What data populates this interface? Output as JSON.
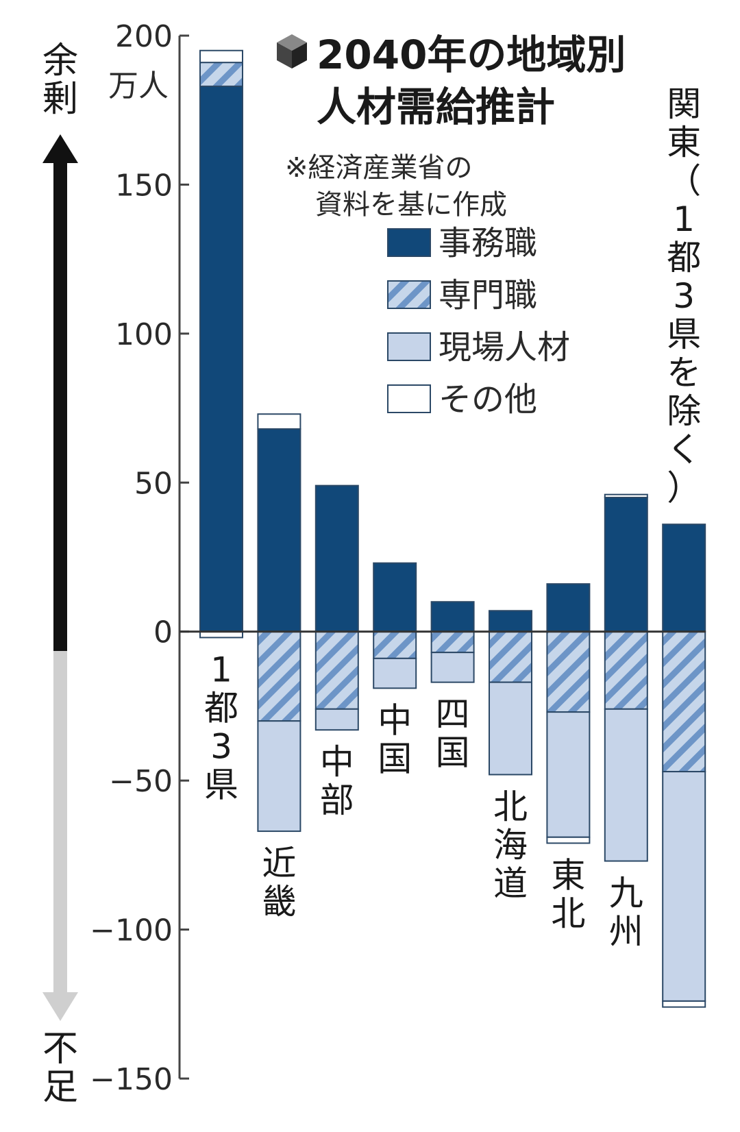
{
  "chart_data": {
    "type": "bar",
    "stacked": true,
    "title_lines": [
      "2040年の地域別",
      "人材需給推計"
    ],
    "note_lines": [
      "※経済産業省の",
      "資料を基に作成"
    ],
    "y_unit": "万人",
    "y_top_label": "余剰",
    "y_bottom_label": "不足",
    "ylim": [
      -150,
      200
    ],
    "yticks": [
      "200",
      "150",
      "100",
      "50",
      "0",
      "−50",
      "−100",
      "−150"
    ],
    "ytick_values": [
      200,
      150,
      100,
      50,
      0,
      -50,
      -100,
      -150
    ],
    "colors": {
      "clerical": "#114879",
      "professional_a": "#6d95c7",
      "professional_b": "#c6d6ea",
      "field": "#c6d4e9",
      "other": "#ffffff",
      "outline": "#2b4866",
      "arrow_up": "#111111",
      "arrow_down": "#cfcfcf"
    },
    "legend": [
      {
        "key": "clerical",
        "name": "事務職",
        "pattern": "solid"
      },
      {
        "key": "professional",
        "name": "専門職",
        "pattern": "hatch"
      },
      {
        "key": "field",
        "name": "現場人材",
        "pattern": "solid"
      },
      {
        "key": "other",
        "name": "その他",
        "pattern": "solid"
      }
    ],
    "categories": [
      {
        "label": "1都3県",
        "label_chars": [
          "1",
          "都",
          "3",
          "県"
        ],
        "label_side": "below",
        "clerical": 183,
        "professional": 8,
        "field": 0,
        "other": 4,
        "other_neg": -2
      },
      {
        "label": "近畿",
        "label_chars": [
          "近",
          "畿"
        ],
        "label_side": "below",
        "clerical": 68,
        "professional": -30,
        "field": -37,
        "other": 5,
        "other_neg": 0
      },
      {
        "label": "中部",
        "label_chars": [
          "中",
          "部"
        ],
        "label_side": "below",
        "clerical": 49,
        "professional": -26,
        "field": -7,
        "other": 0,
        "other_neg": 0
      },
      {
        "label": "中国",
        "label_chars": [
          "中",
          "国"
        ],
        "label_side": "below",
        "clerical": 23,
        "professional": -9,
        "field": -10,
        "other": 0,
        "other_neg": 0
      },
      {
        "label": "四国",
        "label_chars": [
          "四",
          "国"
        ],
        "label_side": "below",
        "clerical": 10,
        "professional": -7,
        "field": -10,
        "other": 0,
        "other_neg": 0
      },
      {
        "label": "北海道",
        "label_chars": [
          "北",
          "海",
          "道"
        ],
        "label_side": "below",
        "clerical": 7,
        "professional": -17,
        "field": -31,
        "other": 0,
        "other_neg": 0
      },
      {
        "label": "東北",
        "label_chars": [
          "東",
          "北"
        ],
        "label_side": "below",
        "clerical": 16,
        "professional": -27,
        "field": -42,
        "other": 0,
        "other_neg": -2
      },
      {
        "label": "九州",
        "label_chars": [
          "九",
          "州"
        ],
        "label_side": "below",
        "clerical": 45,
        "professional": -26,
        "field": -51,
        "other": 1,
        "other_neg": 0
      },
      {
        "label": "関東（1都3県を除く）",
        "label_chars": [
          "関",
          "東",
          "（",
          "1",
          "都",
          "3",
          "県",
          "を",
          "除",
          "く",
          "）"
        ],
        "label_side": "above",
        "clerical": 36,
        "professional": -47,
        "field": -77,
        "other": 0,
        "other_neg": -2
      }
    ]
  }
}
